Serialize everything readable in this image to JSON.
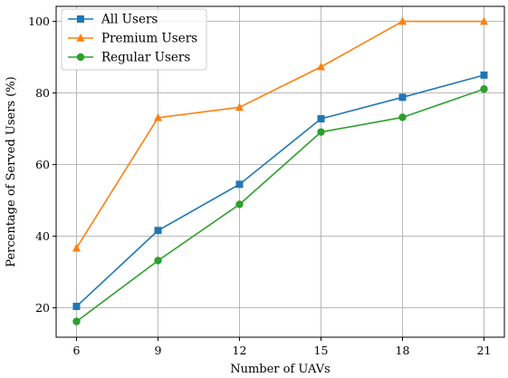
{
  "chart_data": {
    "type": "line",
    "x": [
      6,
      9,
      12,
      15,
      18,
      21
    ],
    "xticks": [
      "6",
      "9",
      "12",
      "15",
      "18",
      "21"
    ],
    "yticks": [
      "20",
      "40",
      "60",
      "80",
      "100"
    ],
    "ytick_values": [
      20,
      40,
      60,
      80,
      100
    ],
    "xlim": [
      5.25,
      21.75
    ],
    "ylim": [
      11.8,
      104.2
    ],
    "xlabel": "Number of UAVs",
    "ylabel": "Percentage of Served Users (%)",
    "grid": true,
    "legend_position": "top-left",
    "series": [
      {
        "name": "All Users",
        "color": "#1f77b4",
        "marker": "square",
        "values": [
          20.4,
          41.6,
          54.5,
          72.8,
          78.8,
          85.0
        ]
      },
      {
        "name": "Premium Users",
        "color": "#ff7f0e",
        "marker": "triangle",
        "values": [
          36.7,
          73.1,
          76.0,
          87.3,
          100.0,
          100.0
        ]
      },
      {
        "name": "Regular Users",
        "color": "#2ca02c",
        "marker": "circle",
        "values": [
          16.2,
          33.2,
          48.9,
          69.1,
          73.2,
          81.1
        ]
      }
    ]
  }
}
